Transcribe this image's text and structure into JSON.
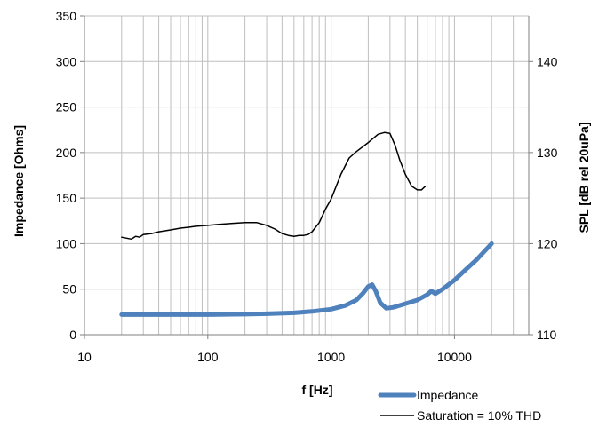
{
  "chart_data": {
    "type": "line",
    "title": "",
    "xlabel": "f [Hz]",
    "ylabel_left": "Impedance [Ohms]",
    "ylabel_right": "SPL [dB rel 20uPa]",
    "x_scale": "log",
    "xlim": [
      10,
      40000
    ],
    "ylim_left": [
      0,
      350
    ],
    "ylim_right": [
      110,
      145
    ],
    "x_ticks": [
      "10",
      "100",
      "1000",
      "10000"
    ],
    "y_left_ticks": [
      "0",
      "50",
      "100",
      "150",
      "200",
      "250",
      "300",
      "350"
    ],
    "y_right_ticks": [
      "110",
      "120",
      "130",
      "140"
    ],
    "grid": true,
    "legend_position": "bottom-right",
    "colors": {
      "impedance": "#4f81bd",
      "saturation": "#000000",
      "grid": "#bfbfbf",
      "axis": "#7f7f7f"
    },
    "series": [
      {
        "name": "Impedance",
        "axis": "left",
        "x": [
          20,
          50,
          100,
          200,
          300,
          500,
          700,
          1000,
          1300,
          1600,
          1800,
          2000,
          2150,
          2300,
          2500,
          2800,
          3200,
          4000,
          5000,
          6000,
          6500,
          7000,
          8000,
          10000,
          12000,
          15000,
          20000
        ],
        "values": [
          22,
          22,
          22,
          22.5,
          23,
          24,
          25.5,
          28,
          32,
          38,
          45,
          53,
          55,
          48,
          35,
          29,
          30,
          34,
          38,
          44,
          48,
          45,
          50,
          60,
          70,
          82,
          100
        ]
      },
      {
        "name": "Saturation = 10% THD",
        "axis": "right",
        "x": [
          20,
          22,
          24,
          26,
          28,
          30,
          35,
          40,
          50,
          60,
          70,
          80,
          100,
          120,
          150,
          200,
          250,
          300,
          350,
          400,
          450,
          500,
          550,
          600,
          650,
          700,
          800,
          900,
          1000,
          1200,
          1400,
          1600,
          2000,
          2400,
          2700,
          3000,
          3300,
          3600,
          4000,
          4500,
          5000,
          5400,
          5800
        ],
        "values": [
          120.7,
          120.6,
          120.5,
          120.8,
          120.7,
          121.0,
          121.1,
          121.3,
          121.5,
          121.7,
          121.8,
          121.9,
          122.0,
          122.1,
          122.2,
          122.3,
          122.3,
          122.0,
          121.6,
          121.1,
          120.9,
          120.8,
          120.9,
          120.9,
          121.0,
          121.3,
          122.3,
          123.8,
          124.9,
          127.6,
          129.4,
          130.1,
          131.1,
          132.0,
          132.2,
          132.1,
          130.8,
          129.2,
          127.6,
          126.3,
          125.9,
          125.9,
          126.3
        ]
      }
    ]
  }
}
